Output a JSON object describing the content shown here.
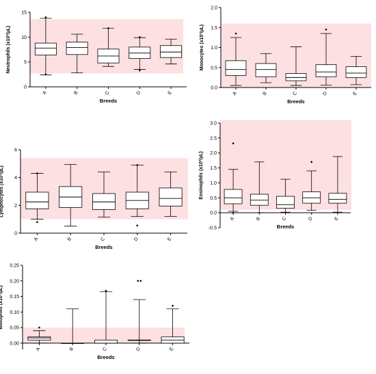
{
  "colors": {
    "reference_band": "#fde0e1",
    "box_stroke": "#000000",
    "box_fill": "#ffffff",
    "axis": "#000000"
  },
  "chart_data": [
    {
      "id": "neutrophils",
      "type": "box",
      "ylabel": "Neutrophils (x10³/µL)",
      "xlabel": "Breeds",
      "categories": [
        "A",
        "B",
        "C",
        "D",
        "E"
      ],
      "ylim": [
        0,
        15
      ],
      "yticks": [
        0,
        5,
        10,
        15
      ],
      "reference_range": [
        2.7,
        13.6
      ],
      "boxes": [
        {
          "min": 2.4,
          "q1": 6.4,
          "median": 7.8,
          "q3": 8.8,
          "max": 13.8,
          "outliers": [
            2.5,
            14.0
          ]
        },
        {
          "min": 2.8,
          "q1": 6.5,
          "median": 7.9,
          "q3": 9.0,
          "max": 10.6,
          "outliers": []
        },
        {
          "min": 4.1,
          "q1": 4.8,
          "median": 6.2,
          "q3": 7.6,
          "max": 11.8,
          "outliers": [
            11.8
          ]
        },
        {
          "min": 3.5,
          "q1": 5.7,
          "median": 6.8,
          "q3": 8.0,
          "max": 9.9,
          "outliers": [
            3.3,
            10.0
          ]
        },
        {
          "min": 4.6,
          "q1": 5.9,
          "median": 7.0,
          "q3": 8.3,
          "max": 9.6,
          "outliers": []
        }
      ]
    },
    {
      "id": "monocytes",
      "type": "box",
      "ylabel": "Monocytes (x10³/µL)",
      "xlabel": "Breeds",
      "categories": [
        "A",
        "B",
        "C",
        "D",
        "E"
      ],
      "ylim": [
        0,
        2
      ],
      "yticks": [
        "0.0",
        "0.5",
        "1.0",
        "1.5",
        "2.0"
      ],
      "reference_range": [
        0.0,
        1.6
      ],
      "boxes": [
        {
          "min": 0.05,
          "q1": 0.3,
          "median": 0.45,
          "q3": 0.67,
          "max": 1.25,
          "outliers": [
            1.35
          ]
        },
        {
          "min": 0.12,
          "q1": 0.27,
          "median": 0.45,
          "q3": 0.6,
          "max": 0.85,
          "outliers": []
        },
        {
          "min": 0.05,
          "q1": 0.17,
          "median": 0.25,
          "q3": 0.35,
          "max": 1.02,
          "outliers": []
        },
        {
          "min": 0.06,
          "q1": 0.27,
          "median": 0.39,
          "q3": 0.57,
          "max": 1.35,
          "outliers": [
            1.45
          ]
        },
        {
          "min": 0.07,
          "q1": 0.25,
          "median": 0.36,
          "q3": 0.52,
          "max": 0.78,
          "outliers": []
        }
      ]
    },
    {
      "id": "lymphocytes",
      "type": "box",
      "ylabel": "Lymphocytes (x10³/µL)",
      "xlabel": "Breeds",
      "categories": [
        "A",
        "B",
        "C",
        "D",
        "E"
      ],
      "ylim": [
        0,
        6
      ],
      "yticks": [
        0,
        2,
        4,
        6
      ],
      "reference_range": [
        1.0,
        5.4
      ],
      "boxes": [
        {
          "min": 1.0,
          "q1": 1.75,
          "median": 2.25,
          "q3": 2.95,
          "max": 4.3,
          "outliers": [
            0.8,
            4.3
          ]
        },
        {
          "min": 0.5,
          "q1": 1.85,
          "median": 2.6,
          "q3": 3.35,
          "max": 4.95,
          "outliers": []
        },
        {
          "min": 1.15,
          "q1": 1.7,
          "median": 2.25,
          "q3": 2.85,
          "max": 4.4,
          "outliers": []
        },
        {
          "min": 1.2,
          "q1": 1.75,
          "median": 2.35,
          "q3": 2.95,
          "max": 4.9,
          "outliers": [
            0.55,
            4.9
          ]
        },
        {
          "min": 1.2,
          "q1": 1.95,
          "median": 2.5,
          "q3": 3.25,
          "max": 4.4,
          "outliers": []
        }
      ]
    },
    {
      "id": "eosinophils",
      "type": "box",
      "ylabel": "Eosinophils (x10³/µL)",
      "xlabel": "Breeds",
      "categories": [
        "A",
        "B",
        "C",
        "D",
        "E"
      ],
      "ylim": [
        -0.5,
        3.0
      ],
      "yticks": [
        "-0.5",
        "0.0",
        "0.5",
        "1.0",
        "1.5",
        "2.0",
        "2.5",
        "3.0"
      ],
      "reference_range": [
        0.1,
        3.1
      ],
      "boxes": [
        {
          "min": 0.05,
          "q1": 0.3,
          "median": 0.5,
          "q3": 0.78,
          "max": 1.45,
          "outliers": [
            2.32,
            0.0
          ]
        },
        {
          "min": 0.0,
          "q1": 0.25,
          "median": 0.42,
          "q3": 0.62,
          "max": 1.7,
          "outliers": []
        },
        {
          "min": 0.02,
          "q1": 0.15,
          "median": 0.27,
          "q3": 0.55,
          "max": 1.12,
          "outliers": []
        },
        {
          "min": 0.08,
          "q1": 0.32,
          "median": 0.5,
          "q3": 0.7,
          "max": 1.4,
          "outliers": [
            1.7
          ]
        },
        {
          "min": 0.02,
          "q1": 0.32,
          "median": 0.45,
          "q3": 0.65,
          "max": 1.88,
          "outliers": []
        }
      ]
    },
    {
      "id": "basophils",
      "type": "box",
      "ylabel": "Basophils (x10³/µL)",
      "xlabel": "Breeds",
      "categories": [
        "A",
        "B",
        "C",
        "D",
        "E"
      ],
      "ylim": [
        -0.02,
        0.25
      ],
      "yticks": [
        "0.00",
        "0.05",
        "0.10",
        "0.15",
        "0.20",
        "0.25"
      ],
      "reference_range": [
        0.0,
        0.05
      ],
      "boxes": [
        {
          "min": 0.0,
          "q1": 0.01,
          "median": 0.017,
          "q3": 0.02,
          "max": 0.04,
          "outliers": [
            0.05
          ]
        },
        {
          "min": 0.0,
          "q1": 0.0,
          "median": 0.0,
          "q3": 0.0,
          "max": 0.11,
          "outliers": []
        },
        {
          "min": 0.0,
          "q1": 0.0,
          "median": 0.0,
          "q3": 0.01,
          "max": 0.165,
          "outliers": [
            0.168
          ]
        },
        {
          "min": 0.0,
          "q1": 0.01,
          "median": 0.01,
          "q3": 0.01,
          "max": 0.14,
          "outliers": [
            0.2,
            0.2
          ]
        },
        {
          "min": 0.0,
          "q1": 0.0,
          "median": 0.01,
          "q3": 0.02,
          "max": 0.11,
          "outliers": [
            0.12
          ]
        }
      ]
    }
  ]
}
